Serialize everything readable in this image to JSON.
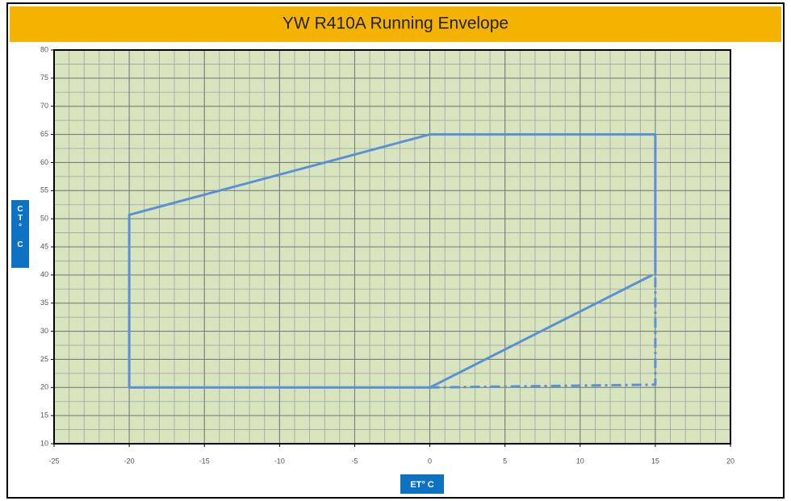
{
  "chart_data": {
    "type": "line",
    "title": "YW R410A  Running Envelope",
    "x_label": "ET° C",
    "y_label": "CT° C",
    "xlim": [
      -25,
      20
    ],
    "xticks": [
      -25,
      -20,
      -15,
      -10,
      -5,
      0,
      5,
      10,
      15,
      20
    ],
    "ylim": [
      10,
      80
    ],
    "yticks": [
      10,
      15,
      20,
      25,
      30,
      35,
      40,
      45,
      50,
      55,
      60,
      65,
      70,
      75,
      80
    ],
    "grid": true,
    "minor_grid_step": {
      "x": 1,
      "y": 2.5
    },
    "background": "#d7e4bd",
    "series": [
      {
        "color": "#5b8fd6",
        "linestyle": "solid",
        "x": [
          14.8,
          0,
          -20,
          -20,
          0,
          15,
          15
        ],
        "values": [
          40,
          20,
          20,
          50.7,
          65,
          65,
          40
        ]
      },
      {
        "color": "#5b8fd6",
        "linestyle": "dashdot",
        "x": [
          0,
          15,
          15
        ],
        "values": [
          20,
          20.5,
          40
        ]
      }
    ]
  }
}
